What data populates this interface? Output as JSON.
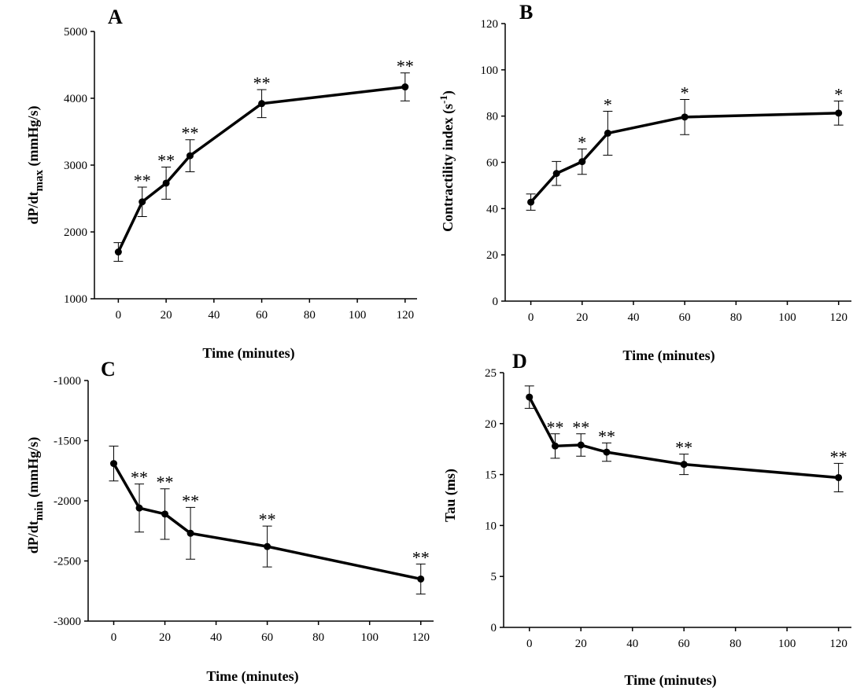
{
  "chart_data": [
    {
      "panel": "A",
      "type": "line",
      "title": "",
      "xlabel": "Time (minutes)",
      "ylabel": "dP/dt",
      "ylabel_sub": "max",
      "ylabel_tail": " (mmHg/s)",
      "xlim": [
        -10,
        125
      ],
      "ylim": [
        1000,
        5000
      ],
      "xticks": [
        0,
        20,
        40,
        60,
        80,
        100,
        120
      ],
      "yticks": [
        1000,
        2000,
        3000,
        4000,
        5000
      ],
      "x": [
        0,
        10,
        20,
        30,
        60,
        120
      ],
      "y": [
        1700,
        2450,
        2730,
        3140,
        3920,
        4170
      ],
      "error": [
        140,
        220,
        240,
        240,
        210,
        210
      ],
      "annotations": [
        "",
        "**",
        "**",
        "**",
        "**",
        "**"
      ]
    },
    {
      "panel": "B",
      "type": "line",
      "title": "",
      "xlabel": "Time (minutes)",
      "ylabel": "Contractility index (s",
      "ylabel_sup": "-1",
      "ylabel_tail": ")",
      "xlim": [
        -10,
        125
      ],
      "ylim": [
        0,
        120
      ],
      "xticks": [
        0,
        20,
        40,
        60,
        80,
        100,
        120
      ],
      "yticks": [
        0,
        20,
        40,
        60,
        80,
        100,
        120
      ],
      "x": [
        0,
        10,
        20,
        30,
        60,
        120
      ],
      "y": [
        42.8,
        55.2,
        60.3,
        72.6,
        79.6,
        81.3
      ],
      "error": [
        3.5,
        5.2,
        5.5,
        9.5,
        7.6,
        5.2
      ],
      "annotations": [
        "",
        "",
        "*",
        "*",
        "*",
        "*"
      ]
    },
    {
      "panel": "C",
      "type": "line",
      "title": "",
      "xlabel": "Time (minutes)",
      "ylabel": "dP/dt",
      "ylabel_sub": "min",
      "ylabel_tail": " (mmHg/s)",
      "xlim": [
        -10,
        125
      ],
      "ylim": [
        -3000,
        -1000
      ],
      "xticks": [
        0,
        20,
        40,
        60,
        80,
        100,
        120
      ],
      "yticks": [
        -3000,
        -2500,
        -2000,
        -1500,
        -1000
      ],
      "x": [
        0,
        10,
        20,
        30,
        60,
        120
      ],
      "y": [
        -1690,
        -2060,
        -2110,
        -2270,
        -2380,
        -2650
      ],
      "error": [
        145,
        200,
        210,
        215,
        170,
        125
      ],
      "annotations": [
        "",
        "**",
        "**",
        "**",
        "**",
        "**"
      ]
    },
    {
      "panel": "D",
      "type": "line",
      "title": "",
      "xlabel": "Time (minutes)",
      "ylabel": "Tau (ms)",
      "xlim": [
        -10,
        125
      ],
      "ylim": [
        0,
        25
      ],
      "xticks": [
        0,
        20,
        40,
        60,
        80,
        100,
        120
      ],
      "yticks": [
        0,
        5,
        10,
        15,
        20,
        25
      ],
      "x": [
        0,
        10,
        20,
        30,
        60,
        120
      ],
      "y": [
        22.6,
        17.8,
        17.9,
        17.2,
        16.0,
        14.7
      ],
      "error": [
        1.1,
        1.2,
        1.1,
        0.9,
        1.0,
        1.4
      ],
      "annotations": [
        "",
        "**",
        "**",
        "**",
        "**",
        "**"
      ]
    }
  ]
}
